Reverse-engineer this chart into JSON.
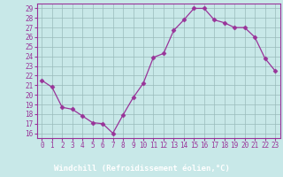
{
  "x": [
    0,
    1,
    2,
    3,
    4,
    5,
    6,
    7,
    8,
    9,
    10,
    11,
    12,
    13,
    14,
    15,
    16,
    17,
    18,
    19,
    20,
    21,
    22,
    23
  ],
  "y": [
    21.5,
    20.8,
    18.7,
    18.5,
    17.8,
    17.1,
    17.0,
    16.0,
    17.9,
    19.7,
    21.2,
    23.9,
    24.3,
    26.7,
    27.8,
    29.0,
    29.0,
    27.8,
    27.5,
    27.0,
    27.0,
    26.0,
    23.8,
    22.5
  ],
  "line_color": "#993399",
  "marker": "D",
  "marker_size": 2.5,
  "bg_color": "#c8e8e8",
  "plot_bg": "#c8e8e8",
  "grid_color": "#99bbbb",
  "bottom_bar_color": "#7733aa",
  "xlabel": "Windchill (Refroidissement éolien,°C)",
  "yticks": [
    16,
    17,
    18,
    19,
    20,
    21,
    22,
    23,
    24,
    25,
    26,
    27,
    28,
    29
  ],
  "xticks": [
    0,
    1,
    2,
    3,
    4,
    5,
    6,
    7,
    8,
    9,
    10,
    11,
    12,
    13,
    14,
    15,
    16,
    17,
    18,
    19,
    20,
    21,
    22,
    23
  ],
  "ylim": [
    15.5,
    29.5
  ],
  "xlim": [
    -0.5,
    23.5
  ],
  "tick_fontsize": 5.5,
  "label_fontsize": 6.5,
  "spine_color": "#993399"
}
